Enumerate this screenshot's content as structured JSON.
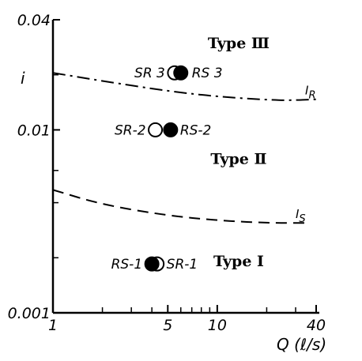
{
  "chart_data": {
    "type": "scatter",
    "x_scale": "log",
    "y_scale": "log",
    "xlim": [
      1,
      40
    ],
    "ylim": [
      0.001,
      0.04
    ],
    "x_ticks": [
      {
        "value": 1,
        "label": "1"
      },
      {
        "value": 5,
        "label": "5"
      },
      {
        "value": 10,
        "label": "10"
      },
      {
        "value": 40,
        "label": "40"
      }
    ],
    "x_minor_ticks": [
      2,
      3,
      4,
      6,
      7,
      8,
      9,
      20,
      30
    ],
    "y_ticks": [
      {
        "value": 0.001,
        "label": "0.001"
      },
      {
        "value": 0.01,
        "label": "0.01"
      },
      {
        "value": 0.04,
        "label": "0.04"
      }
    ],
    "y_minor_ticks": [
      0.002,
      0.004,
      0.006,
      0.02
    ],
    "xlabel": "Q",
    "xlabel_unit": "(ℓ/s)",
    "ylabel": "i",
    "grid": false,
    "curves": [
      {
        "name": "IR",
        "label_main": "I",
        "label_sub": "R",
        "style": "dash-dot",
        "x": [
          1,
          2,
          5,
          10,
          20,
          28,
          40
        ],
        "y": [
          0.0205,
          0.0185,
          0.0163,
          0.0152,
          0.0146,
          0.0145,
          0.0147
        ]
      },
      {
        "name": "IS",
        "label_main": "I",
        "label_sub": "S",
        "style": "dashed",
        "x": [
          1,
          2,
          5,
          10,
          20,
          35
        ],
        "y": [
          0.0047,
          0.0039,
          0.0034,
          0.0032,
          0.0031,
          0.0031
        ]
      }
    ],
    "points": [
      {
        "name": "SR-1",
        "label": "SR-1",
        "marker": "open",
        "x": 4.3,
        "y": 0.00185
      },
      {
        "name": "RS-1",
        "label": "RS-1",
        "marker": "filled",
        "x": 4.0,
        "y": 0.00185
      },
      {
        "name": "SR-2",
        "label": "SR-2",
        "marker": "open",
        "x": 4.2,
        "y": 0.01
      },
      {
        "name": "RS-2",
        "label": "RS-2",
        "marker": "filled",
        "x": 5.2,
        "y": 0.01
      },
      {
        "name": "SR-3",
        "label": "SR 3",
        "marker": "open",
        "x": 5.5,
        "y": 0.0205
      },
      {
        "name": "RS-3",
        "label": "RS 3",
        "marker": "filled",
        "x": 6.0,
        "y": 0.0205
      }
    ],
    "regions": [
      {
        "name": "type-3",
        "label": "Type Ⅲ",
        "x": 13.5,
        "y": 0.028
      },
      {
        "name": "type-2",
        "label": "Type Ⅱ",
        "x": 13.5,
        "y": 0.0065
      },
      {
        "name": "type-1",
        "label": "Type Ⅰ",
        "x": 13.5,
        "y": 0.0018
      }
    ]
  }
}
